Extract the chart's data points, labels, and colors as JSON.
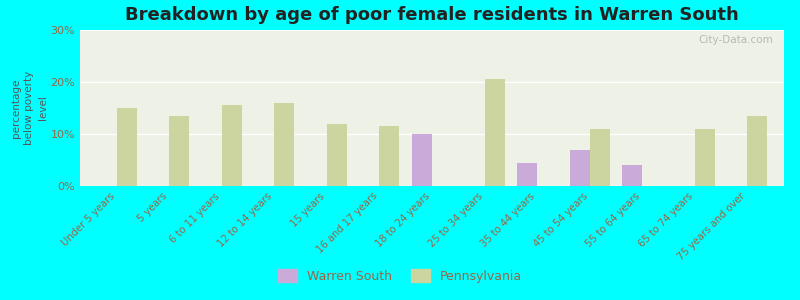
{
  "title": "Breakdown by age of poor female residents in Warren South",
  "ylabel": "percentage\nbelow poverty\nlevel",
  "categories": [
    "Under 5 years",
    "5 years",
    "6 to 11 years",
    "12 to 14 years",
    "15 years",
    "16 and 17 years",
    "18 to 24 years",
    "25 to 34 years",
    "35 to 44 years",
    "45 to 54 years",
    "55 to 64 years",
    "65 to 74 years",
    "75 years and over"
  ],
  "warren_south": [
    null,
    null,
    null,
    null,
    null,
    null,
    10.0,
    null,
    4.5,
    7.0,
    4.0,
    null,
    null
  ],
  "pennsylvania": [
    15.0,
    13.5,
    15.5,
    16.0,
    12.0,
    11.5,
    null,
    20.5,
    null,
    11.0,
    null,
    11.0,
    13.5
  ],
  "warren_color": "#c9aad8",
  "pennsylvania_color": "#ccd5a0",
  "bg_color": "#00ffff",
  "plot_bg_color": "#eef2e6",
  "ylim": [
    0,
    30
  ],
  "yticks": [
    0,
    10,
    20,
    30
  ],
  "ytick_labels": [
    "0%",
    "10%",
    "20%",
    "30%"
  ],
  "title_color": "#222222",
  "axis_label_color": "#555555",
  "tick_label_color": "#996644",
  "watermark": "City-Data.com",
  "bar_width": 0.38
}
